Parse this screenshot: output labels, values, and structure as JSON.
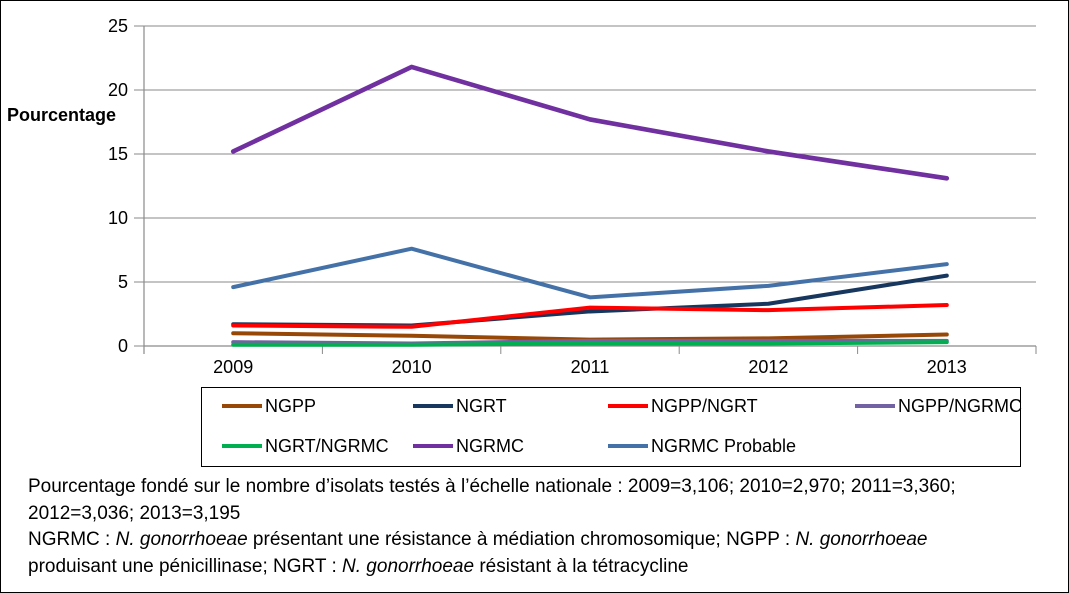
{
  "chart_data": {
    "type": "line",
    "title": "",
    "xlabel": "",
    "ylabel": "Pourcentage",
    "categories": [
      "2009",
      "2010",
      "2011",
      "2012",
      "2013"
    ],
    "y_ticks": [
      0,
      5,
      10,
      15,
      20,
      25
    ],
    "ylim": [
      0,
      25
    ],
    "grid": true,
    "legend_position": "bottom-box",
    "series": [
      {
        "name": "NGPP",
        "color": "#974706",
        "values": [
          1.0,
          0.8,
          0.5,
          0.6,
          0.9
        ]
      },
      {
        "name": "NGRT",
        "color": "#17375E",
        "values": [
          1.7,
          1.6,
          2.7,
          3.3,
          5.5
        ]
      },
      {
        "name": "NGPP/NGRT",
        "color": "#FF0000",
        "values": [
          1.6,
          1.5,
          3.0,
          2.8,
          3.2
        ]
      },
      {
        "name": "NGPP/NGRMC",
        "color": "#7262A3",
        "values": [
          0.3,
          0.2,
          0.4,
          0.4,
          0.4
        ]
      },
      {
        "name": "NGRT/NGRMC",
        "color": "#00B050",
        "values": [
          0.1,
          0.1,
          0.2,
          0.2,
          0.3
        ]
      },
      {
        "name": "NGRMC",
        "color": "#7030A0",
        "values": [
          15.2,
          21.8,
          17.7,
          15.2,
          13.1
        ]
      },
      {
        "name": "NGRMC Probable",
        "color": "#4472A8",
        "values": [
          4.6,
          7.6,
          3.8,
          4.7,
          6.4
        ]
      }
    ]
  },
  "colors": {
    "axis": "#8A8A8A",
    "grid": "#8A8A8A",
    "text": "#000000"
  },
  "footnote": {
    "line1": "Pourcentage fondé sur le nombre d’isolats testés à l’échelle nationale : 2009=3,106; 2010=2,970; 2011=3,360;",
    "line2": "2012=3,036; 2013=3,195",
    "line3a": "NGRMC : ",
    "line3b": "N. gonorrhoeae",
    "line3c": " présentant une résistance à médiation chromosomique; NGPP :  ",
    "line3d": "N. gonorrhoeae",
    "line4a": "produisant une pénicillinase; NGRT : ",
    "line4b": "N. gonorrhoeae",
    "line4c": " résistant à la tétracycline"
  }
}
